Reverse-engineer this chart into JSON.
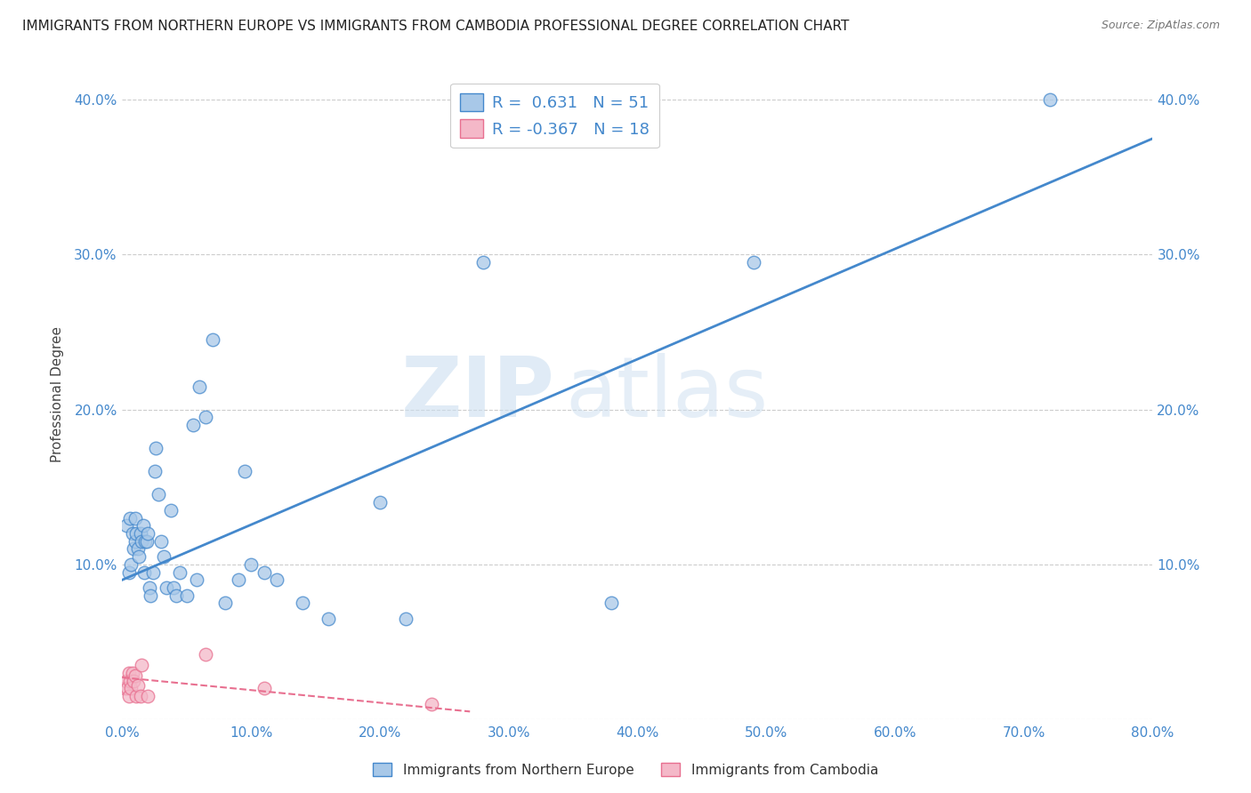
{
  "title": "IMMIGRANTS FROM NORTHERN EUROPE VS IMMIGRANTS FROM CAMBODIA PROFESSIONAL DEGREE CORRELATION CHART",
  "source": "Source: ZipAtlas.com",
  "ylabel": "Professional Degree",
  "blue_r": 0.631,
  "blue_n": 51,
  "pink_r": -0.367,
  "pink_n": 18,
  "blue_color": "#a8c8e8",
  "pink_color": "#f4b8c8",
  "blue_line_color": "#4488cc",
  "pink_line_color": "#e87090",
  "watermark_zip": "ZIP",
  "watermark_atlas": "atlas",
  "xlim": [
    0.0,
    0.8
  ],
  "ylim": [
    0.0,
    0.42
  ],
  "xticks": [
    0.0,
    0.1,
    0.2,
    0.3,
    0.4,
    0.5,
    0.6,
    0.7,
    0.8
  ],
  "yticks": [
    0.0,
    0.1,
    0.2,
    0.3,
    0.4
  ],
  "blue_line_x0": 0.0,
  "blue_line_y0": 0.09,
  "blue_line_x1": 0.8,
  "blue_line_y1": 0.375,
  "pink_line_x0": 0.0,
  "pink_line_y0": 0.027,
  "pink_line_x1": 0.27,
  "pink_line_y1": 0.005,
  "blue_scatter_x": [
    0.003,
    0.005,
    0.006,
    0.007,
    0.008,
    0.009,
    0.01,
    0.01,
    0.011,
    0.012,
    0.013,
    0.014,
    0.015,
    0.016,
    0.017,
    0.018,
    0.019,
    0.02,
    0.021,
    0.022,
    0.024,
    0.025,
    0.026,
    0.028,
    0.03,
    0.032,
    0.034,
    0.038,
    0.04,
    0.042,
    0.045,
    0.05,
    0.055,
    0.058,
    0.06,
    0.065,
    0.07,
    0.08,
    0.09,
    0.095,
    0.1,
    0.11,
    0.12,
    0.14,
    0.16,
    0.2,
    0.22,
    0.28,
    0.38,
    0.49,
    0.72
  ],
  "blue_scatter_y": [
    0.125,
    0.095,
    0.13,
    0.1,
    0.12,
    0.11,
    0.13,
    0.115,
    0.12,
    0.11,
    0.105,
    0.12,
    0.115,
    0.125,
    0.095,
    0.115,
    0.115,
    0.12,
    0.085,
    0.08,
    0.095,
    0.16,
    0.175,
    0.145,
    0.115,
    0.105,
    0.085,
    0.135,
    0.085,
    0.08,
    0.095,
    0.08,
    0.19,
    0.09,
    0.215,
    0.195,
    0.245,
    0.075,
    0.09,
    0.16,
    0.1,
    0.095,
    0.09,
    0.075,
    0.065,
    0.14,
    0.065,
    0.295,
    0.075,
    0.295,
    0.4
  ],
  "pink_scatter_x": [
    0.002,
    0.003,
    0.004,
    0.005,
    0.005,
    0.006,
    0.007,
    0.008,
    0.009,
    0.01,
    0.011,
    0.012,
    0.014,
    0.015,
    0.02,
    0.065,
    0.11,
    0.24
  ],
  "pink_scatter_y": [
    0.02,
    0.025,
    0.02,
    0.03,
    0.015,
    0.025,
    0.02,
    0.03,
    0.025,
    0.028,
    0.015,
    0.022,
    0.015,
    0.035,
    0.015,
    0.042,
    0.02,
    0.01
  ]
}
